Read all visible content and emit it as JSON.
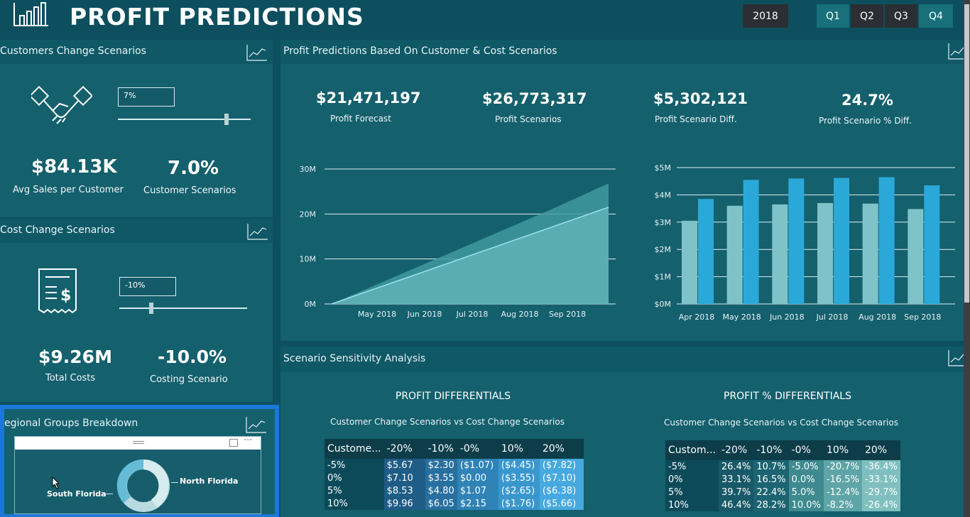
{
  "header": {
    "title": "PROFIT PREDICTIONS",
    "year": "2018",
    "quarters": [
      "Q1",
      "Q2",
      "Q3",
      "Q4"
    ]
  },
  "customers": {
    "title": "Customers Change Scenarios",
    "input_value": "7%",
    "slider_level": 0.82,
    "kpi1_value": "$84.13K",
    "kpi1_label": "Avg Sales per Customer",
    "kpi2_value": "7.0%",
    "kpi2_label": "Customer Scenarios"
  },
  "costs": {
    "title": "Cost Change Scenarios",
    "input_value": "-10%",
    "slider_level": 0.25,
    "kpi1_value": "$9.26M",
    "kpi1_label": "Total Costs",
    "kpi2_value": "-10.0%",
    "kpi2_label": "Costing Scenario"
  },
  "regional": {
    "title": "egional Groups Breakdown",
    "label_left": "South Florida",
    "label_right": "North Florida"
  },
  "predictions": {
    "title": "Profit Predictions Based On Customer & Cost Scenarios",
    "kpis": [
      {
        "value": "$21,471,197",
        "label": "Profit Forecast"
      },
      {
        "value": "$26,773,317",
        "label": "Profit Scenarios"
      },
      {
        "value": "$5,302,121",
        "label": "Profit Scenario Diff."
      },
      {
        "value": "24.7%",
        "label": "Profit Scenario % Diff."
      }
    ]
  },
  "chart_data": [
    {
      "type": "area",
      "y_ticks": [
        "30M",
        "20M",
        "10M",
        "0M"
      ],
      "x_ticks": [
        "May 2018",
        "Jun 2018",
        "Jul 2018",
        "Aug 2018",
        "Sep 2018"
      ],
      "ylim": [
        0,
        30000000
      ],
      "series": [
        {
          "values": [
            0,
            5300000,
            10600000,
            15900000,
            21200000,
            26800000
          ]
        },
        {
          "values": [
            0,
            4300000,
            8600000,
            12900000,
            17200000,
            21500000
          ]
        }
      ],
      "x": [
        0,
        1,
        2,
        3,
        4,
        5
      ],
      "grid": true
    },
    {
      "type": "bar",
      "y_ticks": [
        "$5M",
        "$4M",
        "$3M",
        "$2M",
        "$1M",
        "$0M"
      ],
      "categories": [
        "Apr 2018",
        "May 2018",
        "Jun 2018",
        "Jul 2018",
        "Aug 2018",
        "Sep 2018"
      ],
      "ylim": [
        0,
        5000000
      ],
      "series": [
        {
          "values": [
            3050000,
            3600000,
            3650000,
            3700000,
            3680000,
            3480000
          ],
          "color": "#7fc3c8"
        },
        {
          "values": [
            3850000,
            4550000,
            4600000,
            4620000,
            4650000,
            4350000
          ],
          "color": "#2aa9d8"
        }
      ],
      "grid": true
    }
  ],
  "sensitivity": {
    "title": "Scenario Sensitivity Analysis",
    "left": {
      "heading": "PROFIT DIFFERENTIALS",
      "sub": "Customer Change Scenarios vs Cost Change Scenarios",
      "header": [
        "Custome...",
        "-20%",
        "-10%",
        "-0%",
        "10%",
        "20%"
      ],
      "rows": [
        [
          "-5%",
          "$5.67",
          "$2.30",
          "($1.07)",
          "($4.45)",
          "($7.82)"
        ],
        [
          "0%",
          "$7.10",
          "$3.55",
          "$0.00",
          "($3.55)",
          "($7.10)"
        ],
        [
          "5%",
          "$8.53",
          "$4.80",
          "$1.07",
          "($2.65)",
          "($6.38)"
        ],
        [
          "10%",
          "$9.96",
          "$6.05",
          "$2.15",
          "($1.76)",
          "($5.66)"
        ]
      ]
    },
    "right": {
      "heading": "PROFIT % DIFFERENTIALS",
      "sub": "Customer Change Scenarios vs Cost Change Scenarios",
      "header": [
        "Custom...",
        "-20%",
        "-10%",
        "-0%",
        "10%",
        "20%"
      ],
      "rows": [
        [
          "-5%",
          "26.4%",
          "10.7%",
          "-5.0%",
          "-20.7%",
          "-36.4%"
        ],
        [
          "0%",
          "33.1%",
          "16.5%",
          "0.0%",
          "-16.5%",
          "-33.1%"
        ],
        [
          "5%",
          "39.7%",
          "22.4%",
          "5.0%",
          "-12.4%",
          "-29.7%"
        ],
        [
          "10%",
          "46.4%",
          "28.2%",
          "10.0%",
          "-8.2%",
          "-26.4%"
        ]
      ]
    }
  }
}
